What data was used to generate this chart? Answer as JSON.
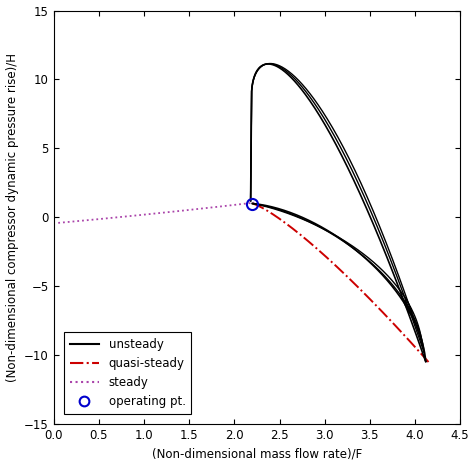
{
  "xlim": [
    0,
    4.5
  ],
  "ylim": [
    -15,
    15
  ],
  "xticks": [
    0,
    0.5,
    1.0,
    1.5,
    2.0,
    2.5,
    3.0,
    3.5,
    4.0,
    4.5
  ],
  "yticks": [
    -15,
    -10,
    -5,
    0,
    5,
    10,
    15
  ],
  "xlabel": "(Non-dimensional mass flow rate)/F",
  "ylabel": "(Non-dimensional compressor dynamic pressure rise)/H",
  "operating_point": [
    2.2,
    1.0
  ],
  "bg_color": "#ffffff",
  "legend_labels": [
    "unsteady",
    "quasi-steady",
    "steady",
    "operating pt."
  ],
  "unsteady_color": "#000000",
  "quasi_steady_color": "#cc0000",
  "steady_color": "#aa44aa",
  "op_color": "#0000cc",
  "figsize": [
    4.75,
    4.66
  ],
  "dpi": 100
}
